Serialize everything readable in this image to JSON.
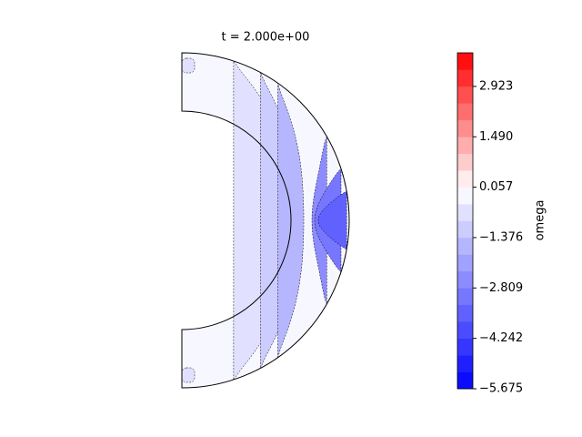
{
  "chart_data": {
    "type": "contour",
    "title": "t = 2.000e+00",
    "colorbar_label": "omega",
    "levels": [
      -5.675,
      -5.197,
      -4.72,
      -4.242,
      -3.764,
      -3.287,
      -2.809,
      -2.331,
      -1.854,
      -1.376,
      -0.898,
      -0.421,
      0.057,
      0.535,
      1.012,
      1.49,
      1.968,
      2.445,
      2.923,
      3.401,
      3.879
    ],
    "colors": [
      "#0b0bff",
      "#2020ff",
      "#3636ff",
      "#4b4bff",
      "#6161ff",
      "#7676ff",
      "#8c8cff",
      "#a1a1ff",
      "#b6b6ff",
      "#ccccff",
      "#e1e1ff",
      "#f7f7ff",
      "#ffecec",
      "#ffcccc",
      "#ffadad",
      "#ff8d8d",
      "#ff6e6e",
      "#ff4f4f",
      "#ff2f2f",
      "#ff1010"
    ],
    "clim": [
      -5.675,
      3.879
    ],
    "cticks": [
      {
        "value": -5.675,
        "label": "−5.675"
      },
      {
        "value": -4.242,
        "label": "−4.242"
      },
      {
        "value": -2.809,
        "label": "−2.809"
      },
      {
        "value": -1.376,
        "label": "−1.376"
      },
      0.057,
      {
        "value": 1.49,
        "label": "1.490"
      },
      2.923
    ]
  }
}
